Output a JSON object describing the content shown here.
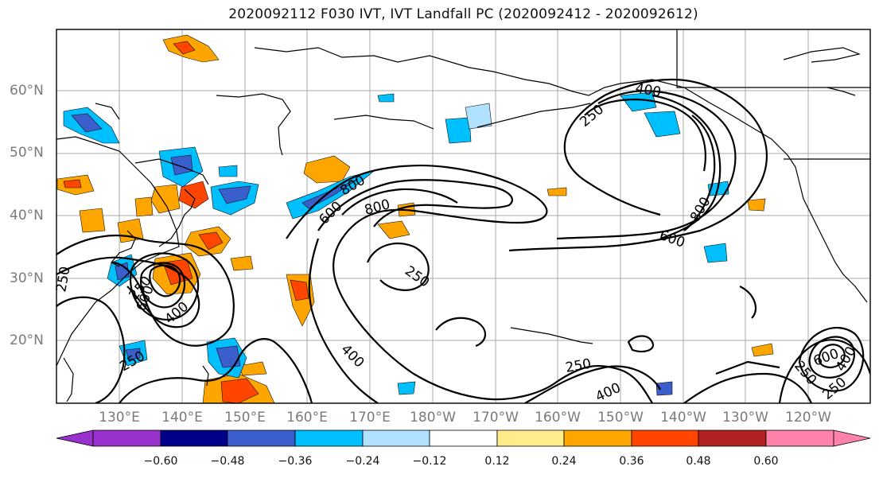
{
  "title": "2020092112 F030 IVT, IVT Landfall PC (2020092412 - 2020092612)",
  "latitude_labels": [
    "60°N",
    "50°N",
    "40°N",
    "30°N",
    "20°N"
  ],
  "longitude_labels": [
    "130°E",
    "140°E",
    "150°E",
    "160°E",
    "170°E",
    "180°W",
    "170°W",
    "160°W",
    "150°W",
    "140°W",
    "130°W",
    "120°W"
  ],
  "contour_labels": [
    "400",
    "250",
    "800",
    "600",
    "800",
    "250",
    "800",
    "600",
    "250",
    "600",
    "400",
    "250",
    "250",
    "400",
    "250",
    "600",
    "400",
    "250",
    "400",
    "250"
  ],
  "colorbar": {
    "ticks": [
      "−0.60",
      "−0.48",
      "−0.36",
      "−0.24",
      "−0.12",
      "0.12",
      "0.24",
      "0.36",
      "0.48",
      "0.60"
    ],
    "colors": [
      "#9932cc",
      "#00008b",
      "#3a5fcd",
      "#00bfff",
      "#b0e2ff",
      "#ffffff",
      "#ffec8b",
      "#ffa500",
      "#ff4500",
      "#b22222",
      "#ff82ab"
    ]
  },
  "colors": {
    "contour": "#000000",
    "coast": "#000000",
    "grid": "#aaaaaa"
  }
}
